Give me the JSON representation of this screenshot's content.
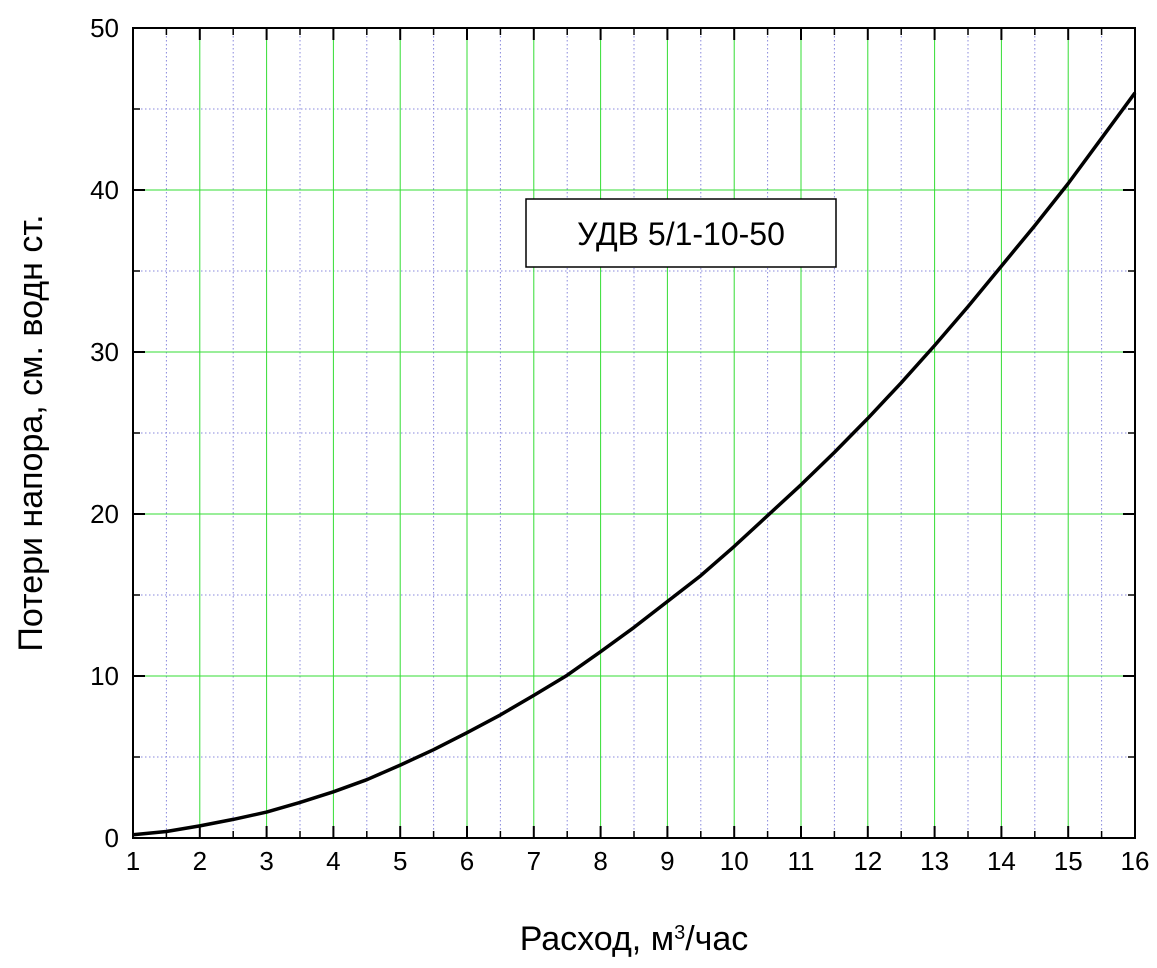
{
  "chart_data": {
    "type": "line",
    "title": "",
    "annotation": "УДВ 5/1-10-50",
    "xlabel": {
      "main": "Расход, м",
      "sup": "3",
      "tail": "/час"
    },
    "ylabel": "Потери напора, см. водн ст.",
    "xlim": [
      1,
      16
    ],
    "ylim": [
      0,
      50
    ],
    "x_major_ticks": [
      1,
      2,
      3,
      4,
      5,
      6,
      7,
      8,
      9,
      10,
      11,
      12,
      13,
      14,
      15,
      16
    ],
    "y_major_ticks": [
      0,
      10,
      20,
      30,
      40,
      50
    ],
    "x_minor_step": 0.5,
    "y_minor_step": 5,
    "grid": "on",
    "colors": {
      "major_grid": "#33dd33",
      "minor_grid": "#8888dd",
      "curve": "#000000",
      "axes": "#000000"
    },
    "series": [
      {
        "x": [
          1,
          1.5,
          2,
          2.5,
          3,
          3.5,
          4,
          4.5,
          5,
          5.5,
          6,
          6.5,
          7,
          7.5,
          8,
          8.5,
          9,
          9.5,
          10,
          10.5,
          11,
          11.5,
          12,
          12.5,
          13,
          13.5,
          14,
          14.5,
          15,
          15.5,
          16
        ],
        "y": [
          0.2,
          0.4,
          0.75,
          1.15,
          1.6,
          2.2,
          2.85,
          3.6,
          4.5,
          5.45,
          6.5,
          7.6,
          8.8,
          10.05,
          11.5,
          13.0,
          14.6,
          16.2,
          18.0,
          19.9,
          21.8,
          23.8,
          25.9,
          28.1,
          30.4,
          32.8,
          35.3,
          37.8,
          40.4,
          43.2,
          46.0
        ]
      }
    ]
  }
}
